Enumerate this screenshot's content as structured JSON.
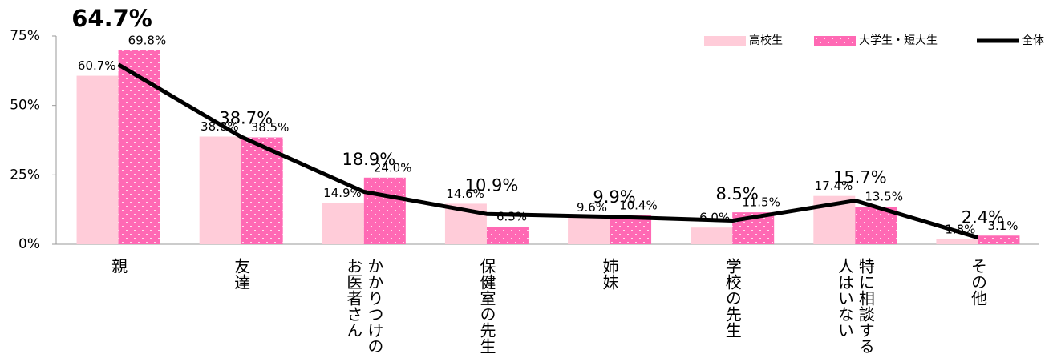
{
  "chart_data": {
    "type": "bar",
    "categories": [
      "親",
      "友達",
      "かかりつけの\nお医者さん",
      "保健室の先生",
      "姉妹",
      "学校の先生",
      "特に相談する\n人はいない",
      "その他"
    ],
    "series": [
      {
        "name": "高校生",
        "type": "bar",
        "color": "#ffccd9",
        "values": [
          60.7,
          38.8,
          14.9,
          14.6,
          9.6,
          6.0,
          17.4,
          1.8
        ],
        "value_labels": [
          "60.7%",
          "38.8%",
          "14.9%",
          "14.6%",
          "9.6%",
          "6.0%",
          "17.4%",
          "1.8%"
        ]
      },
      {
        "name": "大学生・短大生",
        "type": "bar",
        "color": "#ff69b4",
        "pattern": "dots",
        "values": [
          69.8,
          38.5,
          24.0,
          6.3,
          10.4,
          11.5,
          13.5,
          3.1
        ],
        "value_labels": [
          "69.8%",
          "38.5%",
          "24.0%",
          "6.3%",
          "10.4%",
          "11.5%",
          "13.5%",
          "3.1%"
        ]
      },
      {
        "name": "全体",
        "type": "line",
        "color": "#000000",
        "values": [
          64.7,
          38.7,
          18.9,
          10.9,
          9.9,
          8.5,
          15.7,
          2.4
        ],
        "value_labels": [
          "64.7%",
          "38.7%",
          "18.9%",
          "10.9%",
          "9.9%",
          "8.5%",
          "15.7%",
          "2.4%"
        ]
      }
    ],
    "ylim": [
      0,
      75
    ],
    "yticks": [
      {
        "value": 0,
        "label": "0%"
      },
      {
        "value": 25,
        "label": "25%"
      },
      {
        "value": 50,
        "label": "50%"
      },
      {
        "value": 75,
        "label": "75%"
      }
    ],
    "grid": false,
    "legend": "top-right"
  }
}
